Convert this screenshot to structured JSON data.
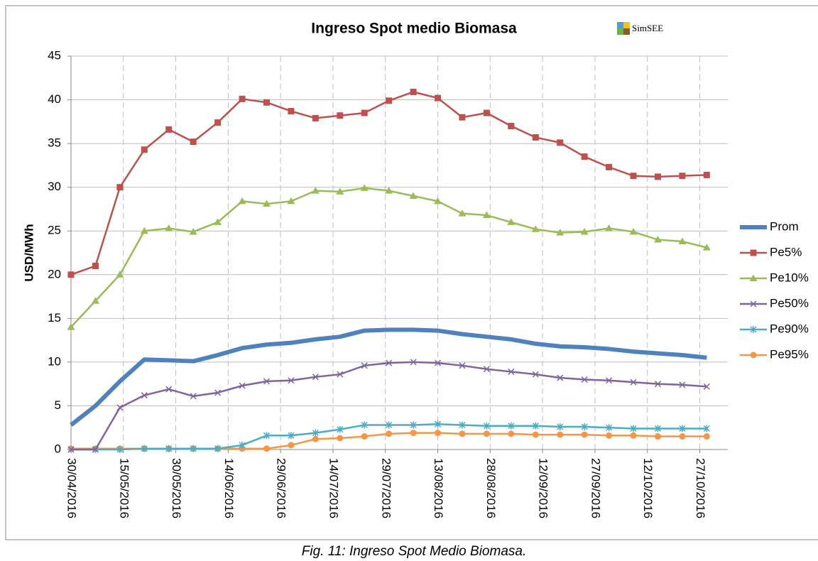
{
  "chart_data": {
    "type": "line",
    "title": "Ingreso Spot medio Biomasa",
    "logo_text": "SimSEE",
    "caption": "Fig. 11: Ingreso Spot Medio Biomasa.",
    "y_label": "USD/MWh",
    "x": [
      "30/04/2016",
      "07/05/2016",
      "14/05/2016",
      "21/05/2016",
      "28/05/2016",
      "04/06/2016",
      "11/06/2016",
      "18/06/2016",
      "25/06/2016",
      "02/07/2016",
      "09/07/2016",
      "16/07/2016",
      "23/07/2016",
      "30/07/2016",
      "06/08/2016",
      "13/08/2016",
      "20/08/2016",
      "27/08/2016",
      "03/09/2016",
      "10/09/2016",
      "17/09/2016",
      "24/09/2016",
      "01/10/2016",
      "08/10/2016",
      "15/10/2016",
      "22/10/2016",
      "29/10/2016"
    ],
    "xlim": [
      "30/04/2016",
      "02/11/2016"
    ],
    "xticks": [
      "30/04/2016",
      "15/05/2016",
      "30/05/2016",
      "14/06/2016",
      "29/06/2016",
      "14/07/2016",
      "29/07/2016",
      "13/08/2016",
      "28/08/2016",
      "12/09/2016",
      "27/09/2016",
      "12/10/2016",
      "27/10/2016"
    ],
    "ylim": [
      0,
      45
    ],
    "yticks": [
      0,
      5,
      10,
      15,
      20,
      25,
      30,
      35,
      40,
      45
    ],
    "grid": true,
    "series": [
      {
        "name": "Prom",
        "color": "#4f81bd",
        "width": 6,
        "marker": "none",
        "values": [
          2.8,
          5,
          7.8,
          10.3,
          10.2,
          10.1,
          10.8,
          11.6,
          12,
          12.2,
          12.6,
          12.9,
          13.6,
          13.7,
          13.7,
          13.6,
          13.2,
          12.9,
          12.6,
          12.1,
          11.8,
          11.7,
          11.5,
          11.2,
          11,
          10.8,
          10.5
        ]
      },
      {
        "name": "Pe5%",
        "color": "#c0504d",
        "width": 2.5,
        "marker": "square",
        "values": [
          20,
          21,
          30,
          34.3,
          36.6,
          35.2,
          37.4,
          40.1,
          39.7,
          38.7,
          37.9,
          38.2,
          38.5,
          39.9,
          40.9,
          40.2,
          38,
          38.5,
          37,
          35.7,
          35.1,
          33.5,
          32.3,
          31.3,
          31.2,
          31.3,
          31.4
        ]
      },
      {
        "name": "Pe10%",
        "color": "#9bbb59",
        "width": 2.5,
        "marker": "triangle",
        "values": [
          14,
          17,
          20,
          25,
          25.3,
          24.9,
          26,
          28.4,
          28.1,
          28.4,
          29.6,
          29.5,
          29.9,
          29.6,
          29,
          28.4,
          27,
          26.8,
          26,
          25.2,
          24.8,
          24.9,
          25.3,
          24.9,
          24,
          23.8,
          23.1
        ]
      },
      {
        "name": "Pe50%",
        "color": "#8064a2",
        "width": 2.5,
        "marker": "cross",
        "values": [
          0,
          0,
          4.8,
          6.2,
          6.9,
          6.1,
          6.5,
          7.3,
          7.8,
          7.9,
          8.3,
          8.6,
          9.6,
          9.9,
          10,
          9.9,
          9.6,
          9.2,
          8.9,
          8.6,
          8.2,
          8,
          7.9,
          7.7,
          7.5,
          7.4,
          7.2
        ]
      },
      {
        "name": "Pe90%",
        "color": "#4bacc6",
        "width": 2.5,
        "marker": "star",
        "values": [
          0,
          0,
          0,
          0.1,
          0.1,
          0.1,
          0.1,
          0.5,
          1.6,
          1.6,
          1.9,
          2.3,
          2.8,
          2.8,
          2.8,
          2.9,
          2.8,
          2.7,
          2.7,
          2.7,
          2.6,
          2.6,
          2.5,
          2.4,
          2.4,
          2.4,
          2.4
        ]
      },
      {
        "name": "Pe95%",
        "color": "#f79646",
        "width": 2.5,
        "marker": "circle",
        "values": [
          0.1,
          0.1,
          0.1,
          0.1,
          0.1,
          0.1,
          0.1,
          0.1,
          0.1,
          0.5,
          1.2,
          1.3,
          1.5,
          1.8,
          1.9,
          1.9,
          1.8,
          1.8,
          1.8,
          1.7,
          1.7,
          1.7,
          1.6,
          1.6,
          1.5,
          1.5,
          1.5
        ]
      }
    ]
  }
}
